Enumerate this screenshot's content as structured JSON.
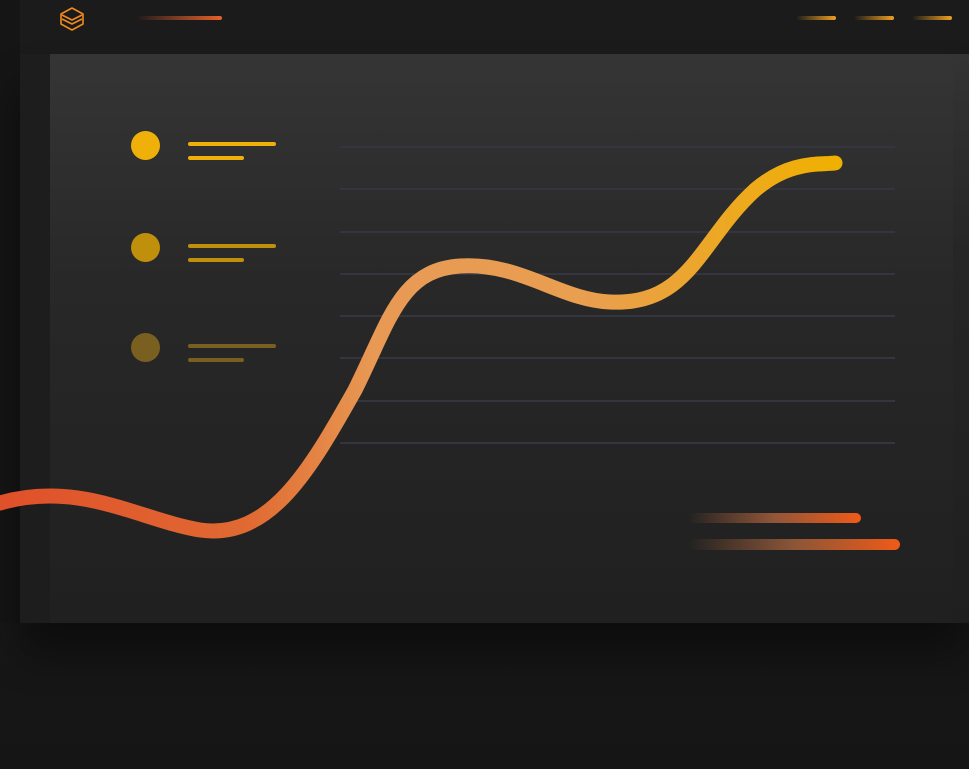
{
  "app": {
    "logo_icon": "layers-hexagon-icon"
  },
  "colors": {
    "background": "#181818",
    "card": "#2a2a2a",
    "accent_orange": "#e85a28",
    "accent_peach": "#e89a50",
    "accent_gold": "#eaaa10",
    "grid": "#34353f"
  },
  "legend": {
    "items": [
      {
        "color": "#f0b00a"
      },
      {
        "color": "#c0900c"
      },
      {
        "color": "#7a6020"
      }
    ]
  },
  "chart_data": {
    "type": "line",
    "grid": true,
    "gridline_count": 8,
    "series": [
      {
        "color_gradient": [
          "#e0502a",
          "#e89a55",
          "#f0b000"
        ]
      }
    ]
  }
}
